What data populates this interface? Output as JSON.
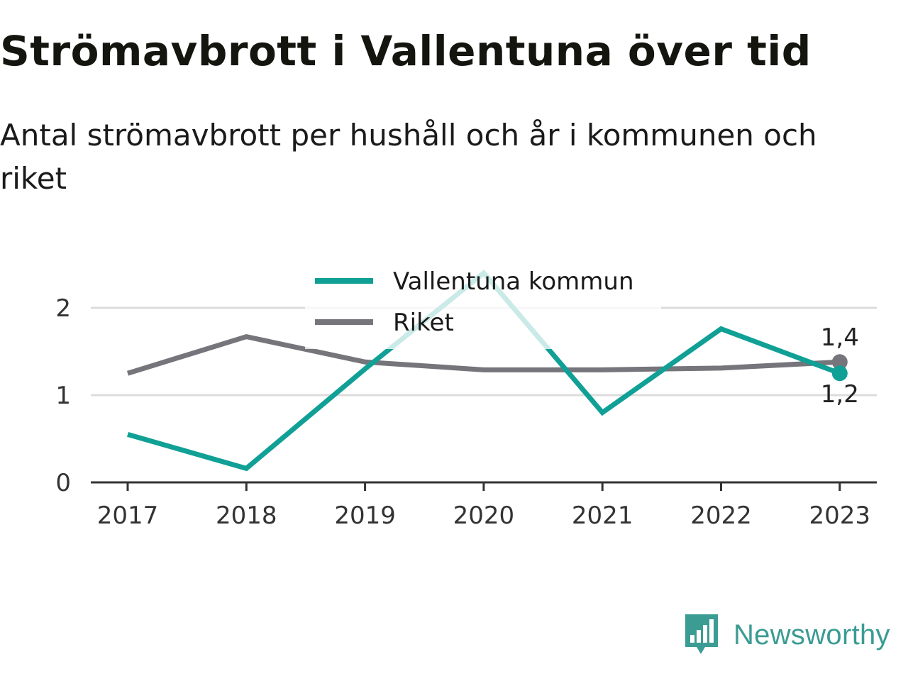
{
  "header": {
    "title": "Strömavbrott i Vallentuna över tid",
    "subtitle": "Antal strömavbrott per hushåll och år i kommunen och riket"
  },
  "brand": {
    "name": "Newsworthy",
    "icon": "newsworthy-logo-icon",
    "color": "#3a9c93"
  },
  "chart_data": {
    "type": "line",
    "x": [
      2017,
      2018,
      2019,
      2020,
      2021,
      2022,
      2023
    ],
    "categories": [
      "2017",
      "2018",
      "2019",
      "2020",
      "2021",
      "2022",
      "2023"
    ],
    "series": [
      {
        "name": "Vallentuna kommun",
        "color": "#10a095",
        "values": [
          0.55,
          0.16,
          1.3,
          2.4,
          0.8,
          1.76,
          1.25
        ],
        "end_label": "1,2"
      },
      {
        "name": "Riket",
        "color": "#76757b",
        "values": [
          1.25,
          1.67,
          1.38,
          1.29,
          1.29,
          1.31,
          1.38
        ],
        "end_label": "1,4"
      }
    ],
    "ylim": [
      0,
      2.5
    ],
    "yticks": [
      0,
      1,
      2
    ],
    "ytick_labels": [
      "0",
      "1",
      "2"
    ],
    "grid": true,
    "legend": "top-center"
  }
}
